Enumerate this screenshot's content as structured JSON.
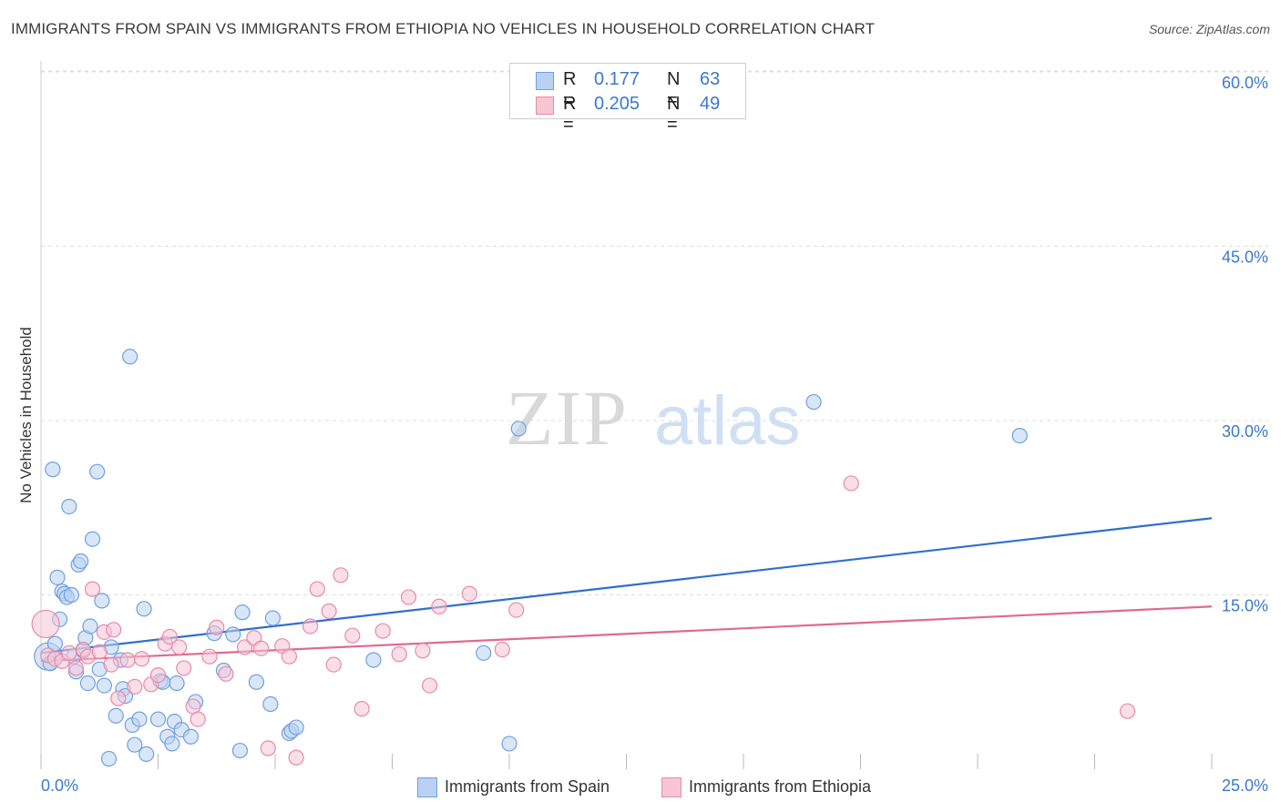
{
  "title": "IMMIGRANTS FROM SPAIN VS IMMIGRANTS FROM ETHIOPIA NO VEHICLES IN HOUSEHOLD CORRELATION CHART",
  "source": "Source: ZipAtlas.com",
  "watermark": {
    "zip": "ZIP",
    "atlas": "atlas"
  },
  "legend": {
    "spain": {
      "r_label": "R =",
      "r_value": "0.177",
      "n_label": "N =",
      "n_value": "63"
    },
    "ethiopia": {
      "r_label": "R =",
      "r_value": "0.205",
      "n_label": "N =",
      "n_value": "49"
    }
  },
  "chart_data": {
    "type": "scatter",
    "title": "IMMIGRANTS FROM SPAIN VS IMMIGRANTS FROM ETHIOPIA NO VEHICLES IN HOUSEHOLD CORRELATION CHART",
    "xlabel": "",
    "ylabel": "No Vehicles in Household",
    "xlim": [
      0,
      25
    ],
    "ylim": [
      0,
      60
    ],
    "x_tick_labels": [
      "0.0%",
      "25.0%"
    ],
    "y_ticks": [
      15,
      30,
      45,
      60
    ],
    "y_tick_labels": [
      "15.0%",
      "30.0%",
      "45.0%",
      "60.0%"
    ],
    "grid": true,
    "legend_position": "top-center",
    "series": [
      {
        "name": "Immigrants from Spain",
        "color": "#6fa0e0",
        "fill": "#b9d1f3",
        "line_color": "#2f6fcf",
        "trend": {
          "x": [
            0,
            25
          ],
          "y": [
            10.0,
            21.6
          ]
        },
        "points": [
          [
            0.15,
            9.7
          ],
          [
            0.2,
            9.1
          ],
          [
            0.25,
            25.8
          ],
          [
            0.3,
            10.8
          ],
          [
            0.35,
            16.5
          ],
          [
            0.4,
            12.9
          ],
          [
            0.45,
            15.3
          ],
          [
            0.5,
            15.1
          ],
          [
            0.55,
            14.8
          ],
          [
            0.6,
            22.6
          ],
          [
            0.65,
            15.0
          ],
          [
            0.7,
            9.7
          ],
          [
            0.75,
            8.4
          ],
          [
            0.8,
            17.6
          ],
          [
            0.85,
            17.9
          ],
          [
            0.9,
            10.2
          ],
          [
            0.95,
            11.3
          ],
          [
            1.0,
            7.4
          ],
          [
            1.05,
            12.3
          ],
          [
            1.1,
            19.8
          ],
          [
            1.2,
            25.6
          ],
          [
            1.25,
            8.6
          ],
          [
            1.3,
            14.5
          ],
          [
            1.35,
            7.2
          ],
          [
            1.45,
            0.9
          ],
          [
            1.5,
            10.5
          ],
          [
            1.6,
            4.6
          ],
          [
            1.7,
            9.4
          ],
          [
            1.75,
            6.9
          ],
          [
            1.8,
            6.3
          ],
          [
            1.9,
            35.5
          ],
          [
            1.95,
            3.8
          ],
          [
            2.0,
            2.1
          ],
          [
            2.1,
            4.3
          ],
          [
            2.2,
            13.8
          ],
          [
            2.25,
            1.3
          ],
          [
            2.5,
            4.3
          ],
          [
            2.55,
            7.6
          ],
          [
            2.6,
            7.5
          ],
          [
            2.7,
            2.8
          ],
          [
            2.8,
            2.2
          ],
          [
            2.85,
            4.1
          ],
          [
            2.9,
            7.4
          ],
          [
            3.0,
            3.4
          ],
          [
            3.2,
            2.8
          ],
          [
            3.3,
            5.8
          ],
          [
            3.7,
            11.7
          ],
          [
            3.9,
            8.5
          ],
          [
            4.1,
            11.6
          ],
          [
            4.25,
            1.6
          ],
          [
            4.3,
            13.5
          ],
          [
            4.6,
            7.5
          ],
          [
            4.9,
            5.6
          ],
          [
            4.95,
            13.0
          ],
          [
            5.3,
            3.1
          ],
          [
            5.35,
            3.3
          ],
          [
            5.45,
            3.6
          ],
          [
            7.1,
            9.4
          ],
          [
            9.45,
            10.0
          ],
          [
            10.0,
            2.2
          ],
          [
            10.2,
            29.3
          ],
          [
            16.5,
            31.6
          ],
          [
            20.9,
            28.7
          ]
        ]
      },
      {
        "name": "Immigrants from Ethiopia",
        "color": "#e98aa8",
        "fill": "#f8c5d5",
        "line_color": "#e0698f",
        "trend": {
          "x": [
            0,
            25
          ],
          "y": [
            9.3,
            14.0
          ]
        },
        "points": [
          [
            0.1,
            12.5
          ],
          [
            0.15,
            9.8
          ],
          [
            0.3,
            9.5
          ],
          [
            0.45,
            9.3
          ],
          [
            0.6,
            10.0
          ],
          [
            0.75,
            8.7
          ],
          [
            0.9,
            10.3
          ],
          [
            1.0,
            9.7
          ],
          [
            1.1,
            15.5
          ],
          [
            1.25,
            10.1
          ],
          [
            1.35,
            11.8
          ],
          [
            1.5,
            9.0
          ],
          [
            1.55,
            12.0
          ],
          [
            1.65,
            6.1
          ],
          [
            1.85,
            9.4
          ],
          [
            2.0,
            7.1
          ],
          [
            2.15,
            9.5
          ],
          [
            2.35,
            7.3
          ],
          [
            2.5,
            8.1
          ],
          [
            2.65,
            10.8
          ],
          [
            2.75,
            11.4
          ],
          [
            2.95,
            10.5
          ],
          [
            3.05,
            8.7
          ],
          [
            3.25,
            5.4
          ],
          [
            3.35,
            4.3
          ],
          [
            3.6,
            9.7
          ],
          [
            3.75,
            12.2
          ],
          [
            3.95,
            8.2
          ],
          [
            4.35,
            10.5
          ],
          [
            4.55,
            11.3
          ],
          [
            4.7,
            10.4
          ],
          [
            4.85,
            1.8
          ],
          [
            5.15,
            10.6
          ],
          [
            5.3,
            9.7
          ],
          [
            5.45,
            1.0
          ],
          [
            5.75,
            12.3
          ],
          [
            5.9,
            15.5
          ],
          [
            6.15,
            13.6
          ],
          [
            6.25,
            9.0
          ],
          [
            6.4,
            16.7
          ],
          [
            6.65,
            11.5
          ],
          [
            6.85,
            5.2
          ],
          [
            7.3,
            11.9
          ],
          [
            7.65,
            9.9
          ],
          [
            7.85,
            14.8
          ],
          [
            8.15,
            10.2
          ],
          [
            8.3,
            7.2
          ],
          [
            8.5,
            14.0
          ],
          [
            9.15,
            15.1
          ],
          [
            9.85,
            10.3
          ],
          [
            10.15,
            13.7
          ],
          [
            17.3,
            24.6
          ],
          [
            23.2,
            5.0
          ]
        ]
      }
    ]
  }
}
